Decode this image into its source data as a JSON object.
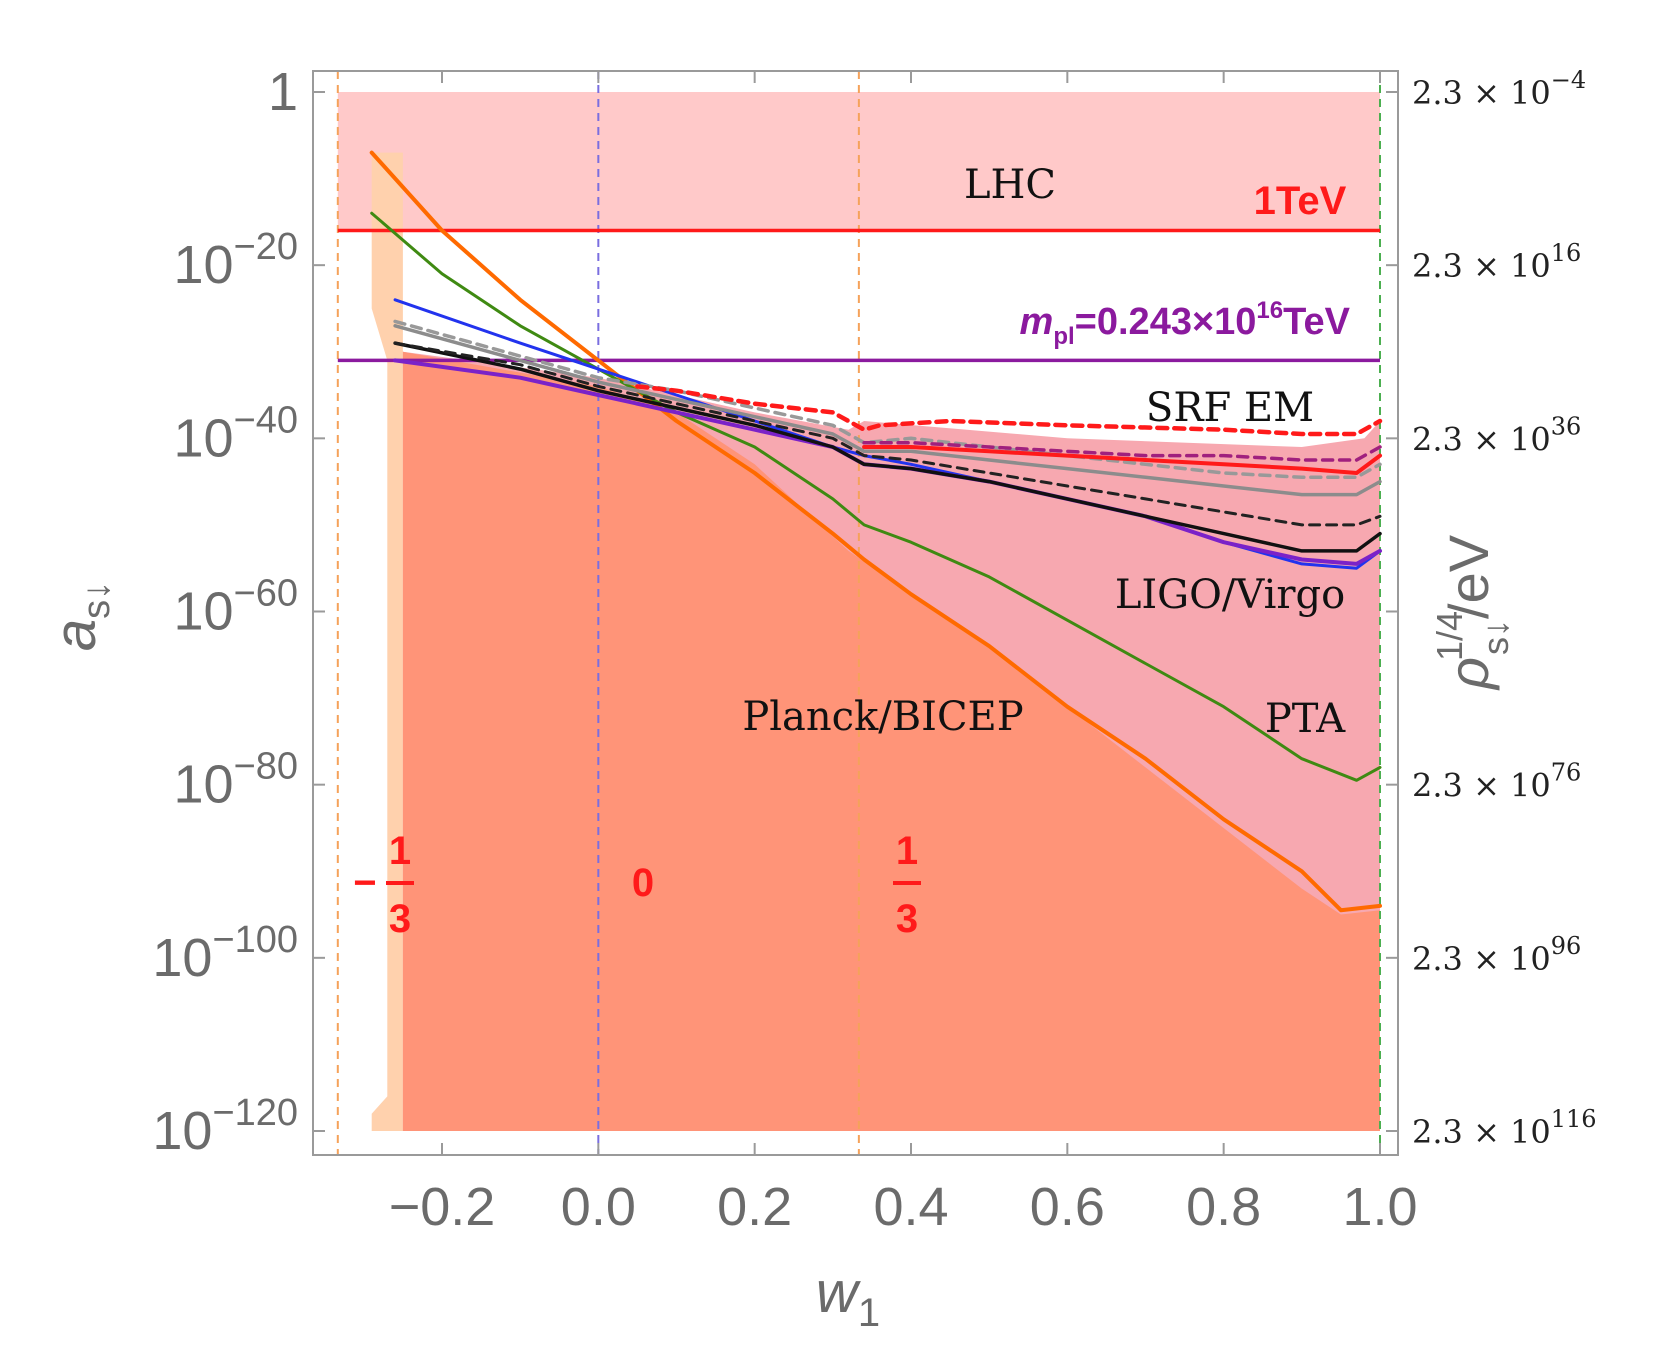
{
  "chart_data": {
    "type": "line",
    "xlabel": "w",
    "xlabel_sub": "1",
    "ylabel": "a",
    "ylabel_sub": "s↓",
    "y2label": "ρ",
    "y2label_sup": "1/4",
    "y2label_sub": "s↓",
    "y2label_tail": "/eV",
    "xlim": [
      -0.36,
      1.02
    ],
    "ylim_log10": [
      -122,
      3
    ],
    "x_ticks": [
      -0.2,
      0.0,
      0.2,
      0.4,
      0.6,
      0.8,
      1.0
    ],
    "x_tick_labels": [
      "−0.2",
      "0.0",
      "0.2",
      "0.4",
      "0.6",
      "0.8",
      "1.0"
    ],
    "y_ticks_log10": [
      0,
      -20,
      -40,
      -60,
      -80,
      -100,
      -120
    ],
    "y_tick_labels": [
      {
        "base": "1",
        "exp": ""
      },
      {
        "base": "10",
        "exp": "−20"
      },
      {
        "base": "10",
        "exp": "−40"
      },
      {
        "base": "10",
        "exp": "−60"
      },
      {
        "base": "10",
        "exp": "−80"
      },
      {
        "base": "10",
        "exp": "−100"
      },
      {
        "base": "10",
        "exp": "−120"
      }
    ],
    "y2_tick_labels": [
      {
        "mant": "2.3 × 10",
        "exp": "−4"
      },
      {
        "mant": "2.3 × 10",
        "exp": "16"
      },
      {
        "mant": "2.3 × 10",
        "exp": "36"
      },
      {
        "mant": "",
        "exp": ""
      },
      {
        "mant": "2.3 × 10",
        "exp": "76"
      },
      {
        "mant": "2.3 × 10",
        "exp": "96"
      },
      {
        "mant": "2.3 × 10",
        "exp": "116"
      }
    ],
    "hlines": [
      {
        "name": "1TeV",
        "log10_y": -16,
        "color": "#ff1a1a"
      },
      {
        "name": "m_pl",
        "log10_y": -31,
        "color": "#8b1a9e"
      }
    ],
    "vlines": [
      {
        "x": -0.3333,
        "color": "#f5a25a"
      },
      {
        "x": 0.0,
        "color": "#7a6ee0"
      },
      {
        "x": 0.3333,
        "color": "#f5a25a"
      },
      {
        "x": 1.0,
        "color": "#4caf50"
      }
    ],
    "regions": [
      {
        "name": "lhc",
        "color": "#ffc9c9",
        "points": [
          [
            -0.3333,
            0
          ],
          [
            1.0,
            0
          ],
          [
            1.0,
            -16
          ],
          [
            -0.3333,
            -16
          ]
        ]
      },
      {
        "name": "light-orange",
        "color": "#ffd1ad",
        "points": [
          [
            -0.29,
            -7
          ],
          [
            -0.25,
            -7
          ],
          [
            -0.25,
            -120
          ],
          [
            -0.29,
            -120
          ],
          [
            -0.29,
            -118
          ],
          [
            -0.27,
            -116
          ],
          [
            -0.27,
            -31
          ],
          [
            -0.29,
            -25
          ]
        ]
      },
      {
        "name": "srf",
        "color": "#f7a8b0",
        "points": [
          [
            -0.25,
            -30
          ],
          [
            0.0,
            -33
          ],
          [
            0.1,
            -35
          ],
          [
            0.2,
            -37
          ],
          [
            0.32,
            -39
          ],
          [
            0.34,
            -38
          ],
          [
            0.6,
            -40
          ],
          [
            0.9,
            -41
          ],
          [
            0.98,
            -40
          ],
          [
            1.0,
            -38
          ],
          [
            1.0,
            -120
          ],
          [
            -0.25,
            -120
          ]
        ]
      },
      {
        "name": "planck",
        "color": "#ff9478",
        "points": [
          [
            -0.25,
            -30
          ],
          [
            0.0,
            -34
          ],
          [
            0.1,
            -37
          ],
          [
            0.2,
            -43
          ],
          [
            0.32,
            -53
          ],
          [
            0.5,
            -64
          ],
          [
            0.7,
            -78
          ],
          [
            0.9,
            -92
          ],
          [
            0.95,
            -95
          ],
          [
            1.0,
            -94.5
          ],
          [
            1.0,
            -120
          ],
          [
            -0.25,
            -120
          ]
        ]
      }
    ],
    "series": [
      {
        "name": "orange",
        "color": "#ff6a00",
        "width": 4,
        "dash": false,
        "points": [
          [
            -0.29,
            -7
          ],
          [
            -0.2,
            -16
          ],
          [
            -0.1,
            -24
          ],
          [
            0.0,
            -31
          ],
          [
            0.1,
            -38
          ],
          [
            0.2,
            -44
          ],
          [
            0.3,
            -51
          ],
          [
            0.34,
            -54
          ],
          [
            0.4,
            -58
          ],
          [
            0.5,
            -64
          ],
          [
            0.6,
            -71
          ],
          [
            0.7,
            -77
          ],
          [
            0.8,
            -84
          ],
          [
            0.9,
            -90
          ],
          [
            0.95,
            -94.5
          ],
          [
            1.0,
            -94
          ]
        ]
      },
      {
        "name": "green",
        "color": "#3f8a12",
        "width": 3,
        "dash": false,
        "points": [
          [
            -0.29,
            -14
          ],
          [
            -0.2,
            -21
          ],
          [
            -0.1,
            -27
          ],
          [
            0.0,
            -32
          ],
          [
            0.1,
            -37
          ],
          [
            0.2,
            -41
          ],
          [
            0.3,
            -47
          ],
          [
            0.34,
            -50
          ],
          [
            0.4,
            -52
          ],
          [
            0.5,
            -56
          ],
          [
            0.6,
            -61
          ],
          [
            0.7,
            -66
          ],
          [
            0.8,
            -71
          ],
          [
            0.9,
            -77
          ],
          [
            0.97,
            -79.5
          ],
          [
            1.0,
            -78
          ]
        ]
      },
      {
        "name": "blue",
        "color": "#2233ee",
        "width": 3,
        "dash": false,
        "points": [
          [
            -0.26,
            -24
          ],
          [
            -0.1,
            -29
          ],
          [
            0.0,
            -32
          ],
          [
            0.1,
            -35
          ],
          [
            0.2,
            -38
          ],
          [
            0.3,
            -41
          ],
          [
            0.34,
            -42
          ],
          [
            0.4,
            -43
          ],
          [
            0.5,
            -45
          ],
          [
            0.6,
            -47
          ],
          [
            0.7,
            -49
          ],
          [
            0.8,
            -52
          ],
          [
            0.9,
            -54.5
          ],
          [
            0.97,
            -55
          ],
          [
            1.0,
            -53
          ]
        ]
      },
      {
        "name": "purple",
        "color": "#7b22c8",
        "width": 4,
        "dash": false,
        "points": [
          [
            -0.26,
            -31
          ],
          [
            -0.1,
            -33
          ],
          [
            0.0,
            -35
          ],
          [
            0.1,
            -37
          ],
          [
            0.2,
            -39
          ],
          [
            0.3,
            -41
          ],
          [
            0.34,
            -43
          ],
          [
            0.4,
            -43.5
          ],
          [
            0.5,
            -45
          ],
          [
            0.6,
            -47
          ],
          [
            0.7,
            -49
          ],
          [
            0.8,
            -52
          ],
          [
            0.9,
            -54
          ],
          [
            0.97,
            -54.5
          ],
          [
            1.0,
            -53
          ]
        ]
      },
      {
        "name": "black",
        "color": "#111111",
        "width": 3.5,
        "dash": false,
        "points": [
          [
            -0.26,
            -29
          ],
          [
            -0.1,
            -32
          ],
          [
            0.0,
            -34.5
          ],
          [
            0.1,
            -36.5
          ],
          [
            0.2,
            -38.5
          ],
          [
            0.3,
            -41
          ],
          [
            0.34,
            -43
          ],
          [
            0.4,
            -43.5
          ],
          [
            0.5,
            -45
          ],
          [
            0.6,
            -47
          ],
          [
            0.7,
            -49
          ],
          [
            0.8,
            -51
          ],
          [
            0.9,
            -53
          ],
          [
            0.97,
            -53
          ],
          [
            1.0,
            -51
          ]
        ]
      },
      {
        "name": "black-dashed",
        "color": "#222222",
        "width": 3,
        "dash": true,
        "points": [
          [
            -0.26,
            -29
          ],
          [
            -0.1,
            -31.5
          ],
          [
            0.0,
            -34
          ],
          [
            0.1,
            -36
          ],
          [
            0.2,
            -38
          ],
          [
            0.3,
            -40
          ],
          [
            0.34,
            -42
          ],
          [
            0.4,
            -42.5
          ],
          [
            0.5,
            -44
          ],
          [
            0.6,
            -45.5
          ],
          [
            0.7,
            -47
          ],
          [
            0.8,
            -48.5
          ],
          [
            0.9,
            -50
          ],
          [
            0.97,
            -50
          ],
          [
            1.0,
            -49
          ]
        ]
      },
      {
        "name": "gray",
        "color": "#8c8c8c",
        "width": 3.5,
        "dash": false,
        "points": [
          [
            -0.26,
            -27
          ],
          [
            -0.1,
            -31
          ],
          [
            0.0,
            -33.5
          ],
          [
            0.1,
            -35.5
          ],
          [
            0.2,
            -37.5
          ],
          [
            0.3,
            -39.5
          ],
          [
            0.34,
            -41.5
          ],
          [
            0.4,
            -41.5
          ],
          [
            0.5,
            -42.5
          ],
          [
            0.6,
            -43.5
          ],
          [
            0.7,
            -44.5
          ],
          [
            0.8,
            -45.5
          ],
          [
            0.9,
            -46.5
          ],
          [
            0.97,
            -46.5
          ],
          [
            1.0,
            -45
          ]
        ]
      },
      {
        "name": "gray-dashed",
        "color": "#999999",
        "width": 3.5,
        "dash": true,
        "points": [
          [
            -0.26,
            -26.5
          ],
          [
            -0.1,
            -30.5
          ],
          [
            0.0,
            -33
          ],
          [
            0.1,
            -34.5
          ],
          [
            0.2,
            -36.5
          ],
          [
            0.3,
            -38.5
          ],
          [
            0.34,
            -40.5
          ],
          [
            0.4,
            -40
          ],
          [
            0.5,
            -41
          ],
          [
            0.6,
            -42
          ],
          [
            0.7,
            -43
          ],
          [
            0.8,
            -44
          ],
          [
            0.9,
            -44.5
          ],
          [
            0.97,
            -44.5
          ],
          [
            1.0,
            -43
          ]
        ]
      },
      {
        "name": "red",
        "color": "#ff1a1a",
        "width": 4,
        "dash": false,
        "points": [
          [
            0.34,
            -41
          ],
          [
            0.4,
            -41
          ],
          [
            0.5,
            -41.5
          ],
          [
            0.6,
            -42
          ],
          [
            0.7,
            -42.5
          ],
          [
            0.8,
            -43
          ],
          [
            0.9,
            -43.5
          ],
          [
            0.97,
            -44
          ],
          [
            1.0,
            -42
          ]
        ]
      },
      {
        "name": "purple-dashed",
        "color": "#a0207e",
        "width": 3.5,
        "dash": true,
        "points": [
          [
            0.34,
            -40.5
          ],
          [
            0.4,
            -40.5
          ],
          [
            0.5,
            -41
          ],
          [
            0.6,
            -41.5
          ],
          [
            0.7,
            -42
          ],
          [
            0.8,
            -42
          ],
          [
            0.9,
            -42.5
          ],
          [
            0.97,
            -42.5
          ],
          [
            1.0,
            -41
          ]
        ]
      },
      {
        "name": "red-dashed",
        "color": "#ff1a1a",
        "width": 4.5,
        "dash": true,
        "points": [
          [
            0.05,
            -34
          ],
          [
            0.1,
            -34.5
          ],
          [
            0.2,
            -36
          ],
          [
            0.3,
            -37
          ],
          [
            0.34,
            -39
          ],
          [
            0.36,
            -38.5
          ],
          [
            0.45,
            -38
          ],
          [
            0.6,
            -38.5
          ],
          [
            0.8,
            -39
          ],
          [
            0.9,
            -39.5
          ],
          [
            0.97,
            -39.5
          ],
          [
            1.0,
            -38
          ]
        ]
      }
    ],
    "annotations": {
      "lhc": "LHC",
      "one_tev": "1TeV",
      "mpl_m": "m",
      "mpl_sub": "pl",
      "mpl_eq": "=0.243×10",
      "mpl_sup": "16",
      "mpl_unit": "TeV",
      "srf": "SRF EM",
      "ligo": "LIGO/Virgo",
      "pta": "PTA",
      "planck": "Planck/BICEP",
      "frac_neg_sign": "−",
      "frac_neg_num": "1",
      "frac_neg_den": "3",
      "zero": "0",
      "frac_pos_num": "1",
      "frac_pos_den": "3"
    }
  }
}
